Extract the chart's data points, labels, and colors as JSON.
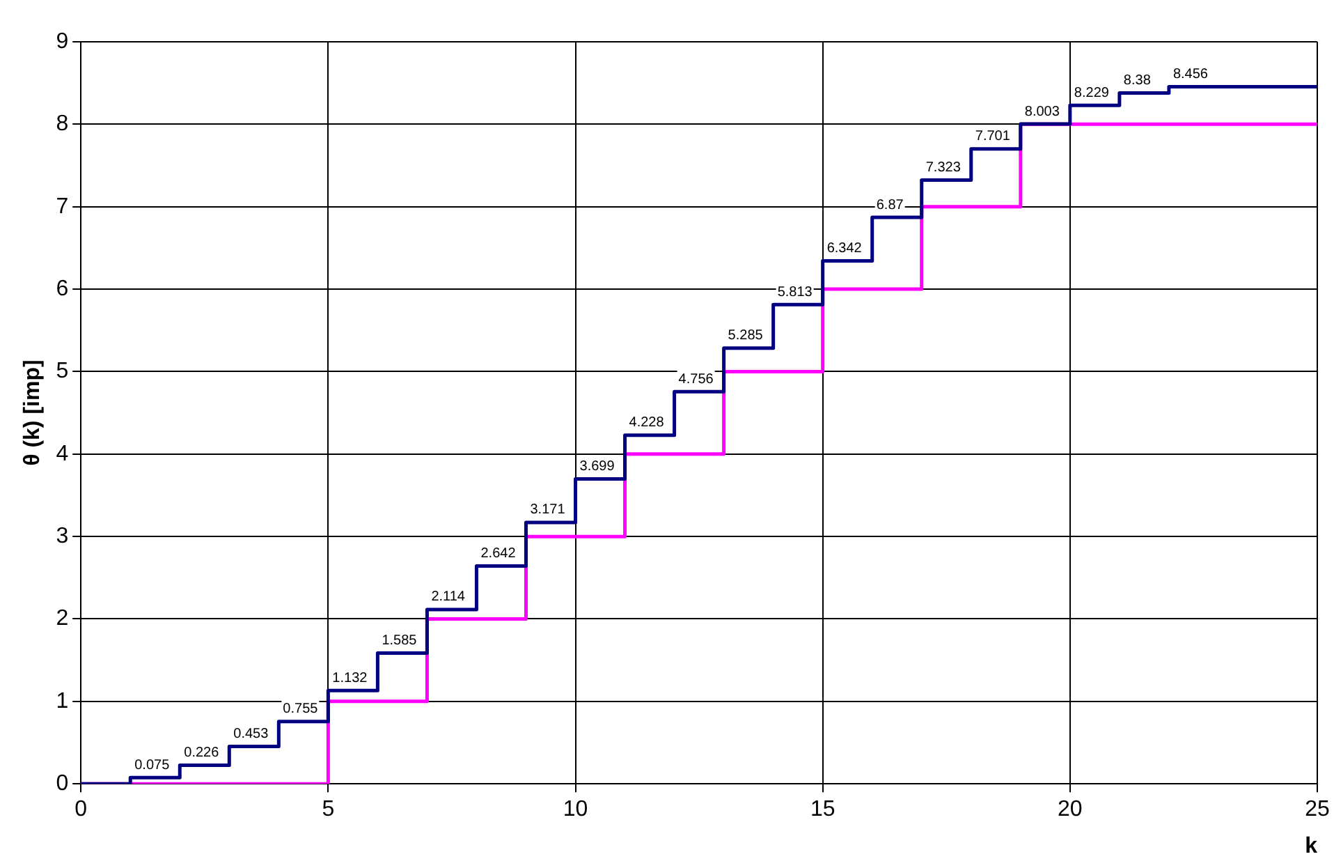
{
  "chart_data": {
    "type": "step",
    "xlabel": "k",
    "ylabel": "θ (k) [imp]",
    "xlim": [
      0,
      25
    ],
    "xticks": [
      0,
      5,
      10,
      15,
      20,
      25
    ],
    "ylim": [
      0,
      9
    ],
    "yticks": [
      0,
      1,
      2,
      3,
      4,
      5,
      6,
      7,
      8,
      9
    ],
    "grid": true,
    "legend": false,
    "marker": "none",
    "series": [
      {
        "color": "#000080",
        "x": [
          0,
          1,
          2,
          3,
          4,
          5,
          6,
          7,
          8,
          9,
          10,
          11,
          12,
          13,
          14,
          15,
          16,
          17,
          18,
          19,
          20,
          21,
          22,
          25
        ],
        "values": [
          0,
          0.075,
          0.226,
          0.453,
          0.755,
          1.132,
          1.585,
          2.114,
          2.642,
          3.171,
          3.699,
          4.228,
          4.756,
          5.285,
          5.813,
          6.342,
          6.87,
          7.323,
          7.701,
          8.003,
          8.229,
          8.38,
          8.456,
          8.456
        ],
        "value_labels": [
          null,
          "0.075",
          "0.226",
          "0.453",
          "0.755",
          "1.132",
          "1.585",
          "2.114",
          "2.642",
          "3.171",
          "3.699",
          "4.228",
          "4.756",
          "5.285",
          "5.813",
          "6.342",
          "6.87",
          "7.323",
          "7.701",
          "8.003",
          "8.229",
          "8.38",
          "8.456",
          null
        ]
      },
      {
        "color": "#ff00ff",
        "x": [
          0,
          5,
          7,
          9,
          11,
          13,
          15,
          17,
          19,
          25
        ],
        "values": [
          0,
          1,
          2,
          3,
          4,
          5,
          6,
          7,
          8,
          8
        ]
      }
    ]
  }
}
